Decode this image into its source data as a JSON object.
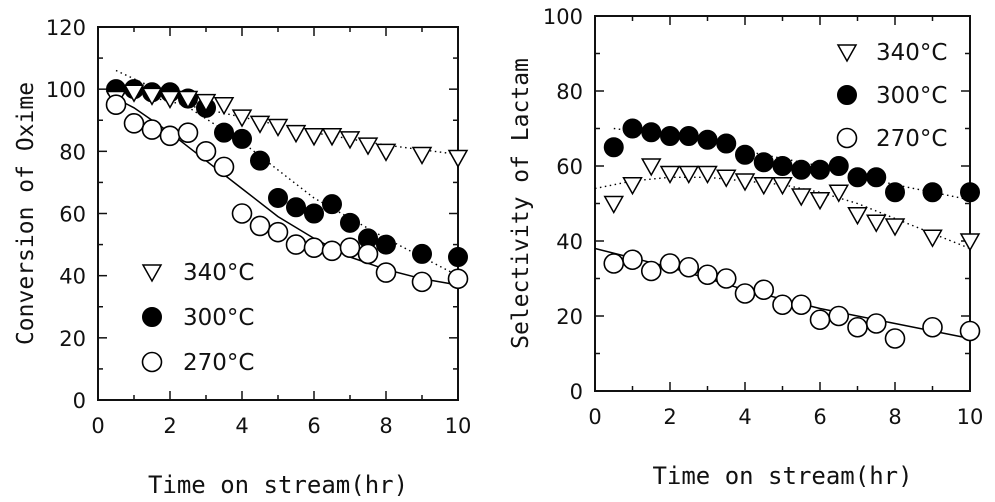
{
  "chart_data": [
    {
      "type": "scatter",
      "title": "",
      "xlabel": "Time on stream(hr)",
      "ylabel": "Conversion of Oxime",
      "xlim": [
        0,
        10
      ],
      "ylim": [
        0,
        120
      ],
      "xticks": [
        "0",
        "2",
        "4",
        "6",
        "8",
        "10"
      ],
      "yticks": [
        "0",
        "20",
        "40",
        "60",
        "80",
        "100",
        "120"
      ],
      "grid": false,
      "legend_position": "bottom-left",
      "series": [
        {
          "name": "340°C",
          "marker": "open-triangle-down",
          "line": "dotted",
          "x": [
            0.5,
            1,
            1.5,
            2,
            2.5,
            3,
            3.5,
            4,
            4.5,
            5,
            5.5,
            6,
            6.5,
            7,
            7.5,
            8,
            9,
            10
          ],
          "y": [
            97,
            99,
            98,
            97,
            97,
            96,
            95,
            91,
            89,
            88,
            86,
            85,
            85,
            84,
            82,
            80,
            79,
            78
          ],
          "fit": {
            "x": [
              0.5,
              2,
              4,
              6,
              8,
              10
            ],
            "y": [
              100,
              96,
              91,
              86,
              82,
              79
            ]
          }
        },
        {
          "name": "300°C",
          "marker": "filled-circle",
          "line": "dotted",
          "x": [
            0.5,
            1,
            1.5,
            2,
            2.5,
            3,
            3.5,
            4,
            4.5,
            5,
            5.5,
            6,
            6.5,
            7,
            7.5,
            8,
            9,
            10
          ],
          "y": [
            100,
            100,
            99,
            99,
            97,
            94,
            86,
            84,
            77,
            65,
            62,
            60,
            63,
            57,
            52,
            50,
            47,
            46
          ],
          "fit": {
            "x": [
              0.5,
              2,
              4,
              6,
              8,
              10
            ],
            "y": [
              106,
              98,
              83,
              65,
              52,
              40
            ]
          }
        },
        {
          "name": "270°C",
          "marker": "open-circle",
          "line": "solid",
          "x": [
            0.5,
            1,
            1.5,
            2,
            2.5,
            3,
            3.5,
            4,
            4.5,
            5,
            5.5,
            6,
            6.5,
            7,
            7.5,
            8,
            9,
            10
          ],
          "y": [
            95,
            89,
            87,
            85,
            86,
            80,
            75,
            60,
            56,
            54,
            50,
            49,
            48,
            49,
            47,
            41,
            38,
            39
          ],
          "fit": {
            "x": [
              0.5,
              1,
              2,
              3,
              4,
              5,
              6,
              7,
              8,
              9,
              10
            ],
            "y": [
              97,
              94,
              86,
              77,
              68,
              59,
              52,
              46,
              42,
              39,
              37
            ]
          }
        }
      ]
    },
    {
      "type": "scatter",
      "title": "",
      "xlabel": "Time on stream(hr)",
      "ylabel": "Selectivity of Lactam",
      "xlim": [
        0,
        10
      ],
      "ylim": [
        0,
        100
      ],
      "xticks": [
        "0",
        "2",
        "4",
        "6",
        "8",
        "10"
      ],
      "yticks": [
        "0",
        "20",
        "40",
        "60",
        "80",
        "100"
      ],
      "grid": false,
      "legend_position": "top-right",
      "series": [
        {
          "name": "340°C",
          "marker": "open-triangle-down",
          "line": "dotted",
          "x": [
            0.5,
            1,
            1.5,
            2,
            2.5,
            3,
            3.5,
            4,
            4.5,
            5,
            5.5,
            6,
            6.5,
            7,
            7.5,
            8,
            9,
            10
          ],
          "y": [
            50,
            55,
            60,
            58,
            58,
            58,
            57,
            56,
            55,
            55,
            52,
            51,
            53,
            47,
            45,
            44,
            41,
            40
          ],
          "fit": {
            "x": [
              0,
              1,
              2,
              3,
              4,
              5,
              6,
              7,
              8,
              9,
              10
            ],
            "y": [
              54,
              56,
              57,
              57,
              56,
              55,
              53,
              50,
              46,
              42,
              38
            ]
          }
        },
        {
          "name": "300°C",
          "marker": "filled-circle",
          "line": "dotted",
          "x": [
            0.5,
            1,
            1.5,
            2,
            2.5,
            3,
            3.5,
            4,
            4.5,
            5,
            5.5,
            6,
            6.5,
            7,
            7.5,
            8,
            9,
            10
          ],
          "y": [
            65,
            70,
            69,
            68,
            68,
            67,
            66,
            63,
            61,
            60,
            59,
            59,
            60,
            57,
            57,
            53,
            53,
            53
          ],
          "fit": {
            "x": [
              0.5,
              2,
              4,
              6,
              8,
              10
            ],
            "y": [
              70,
              68,
              64,
              60,
              55,
              51
            ]
          }
        },
        {
          "name": "270°C",
          "marker": "open-circle",
          "line": "solid",
          "x": [
            0.5,
            1,
            1.5,
            2,
            2.5,
            3,
            3.5,
            4,
            4.5,
            5,
            5.5,
            6,
            6.5,
            7,
            7.5,
            8,
            9,
            10
          ],
          "y": [
            34,
            35,
            32,
            34,
            33,
            31,
            30,
            26,
            27,
            23,
            23,
            19,
            20,
            17,
            18,
            14,
            17,
            16
          ],
          "fit": {
            "x": [
              0,
              2,
              4,
              6,
              8,
              10
            ],
            "y": [
              38,
              33,
              27,
              22,
              18,
              14
            ]
          }
        }
      ]
    }
  ]
}
